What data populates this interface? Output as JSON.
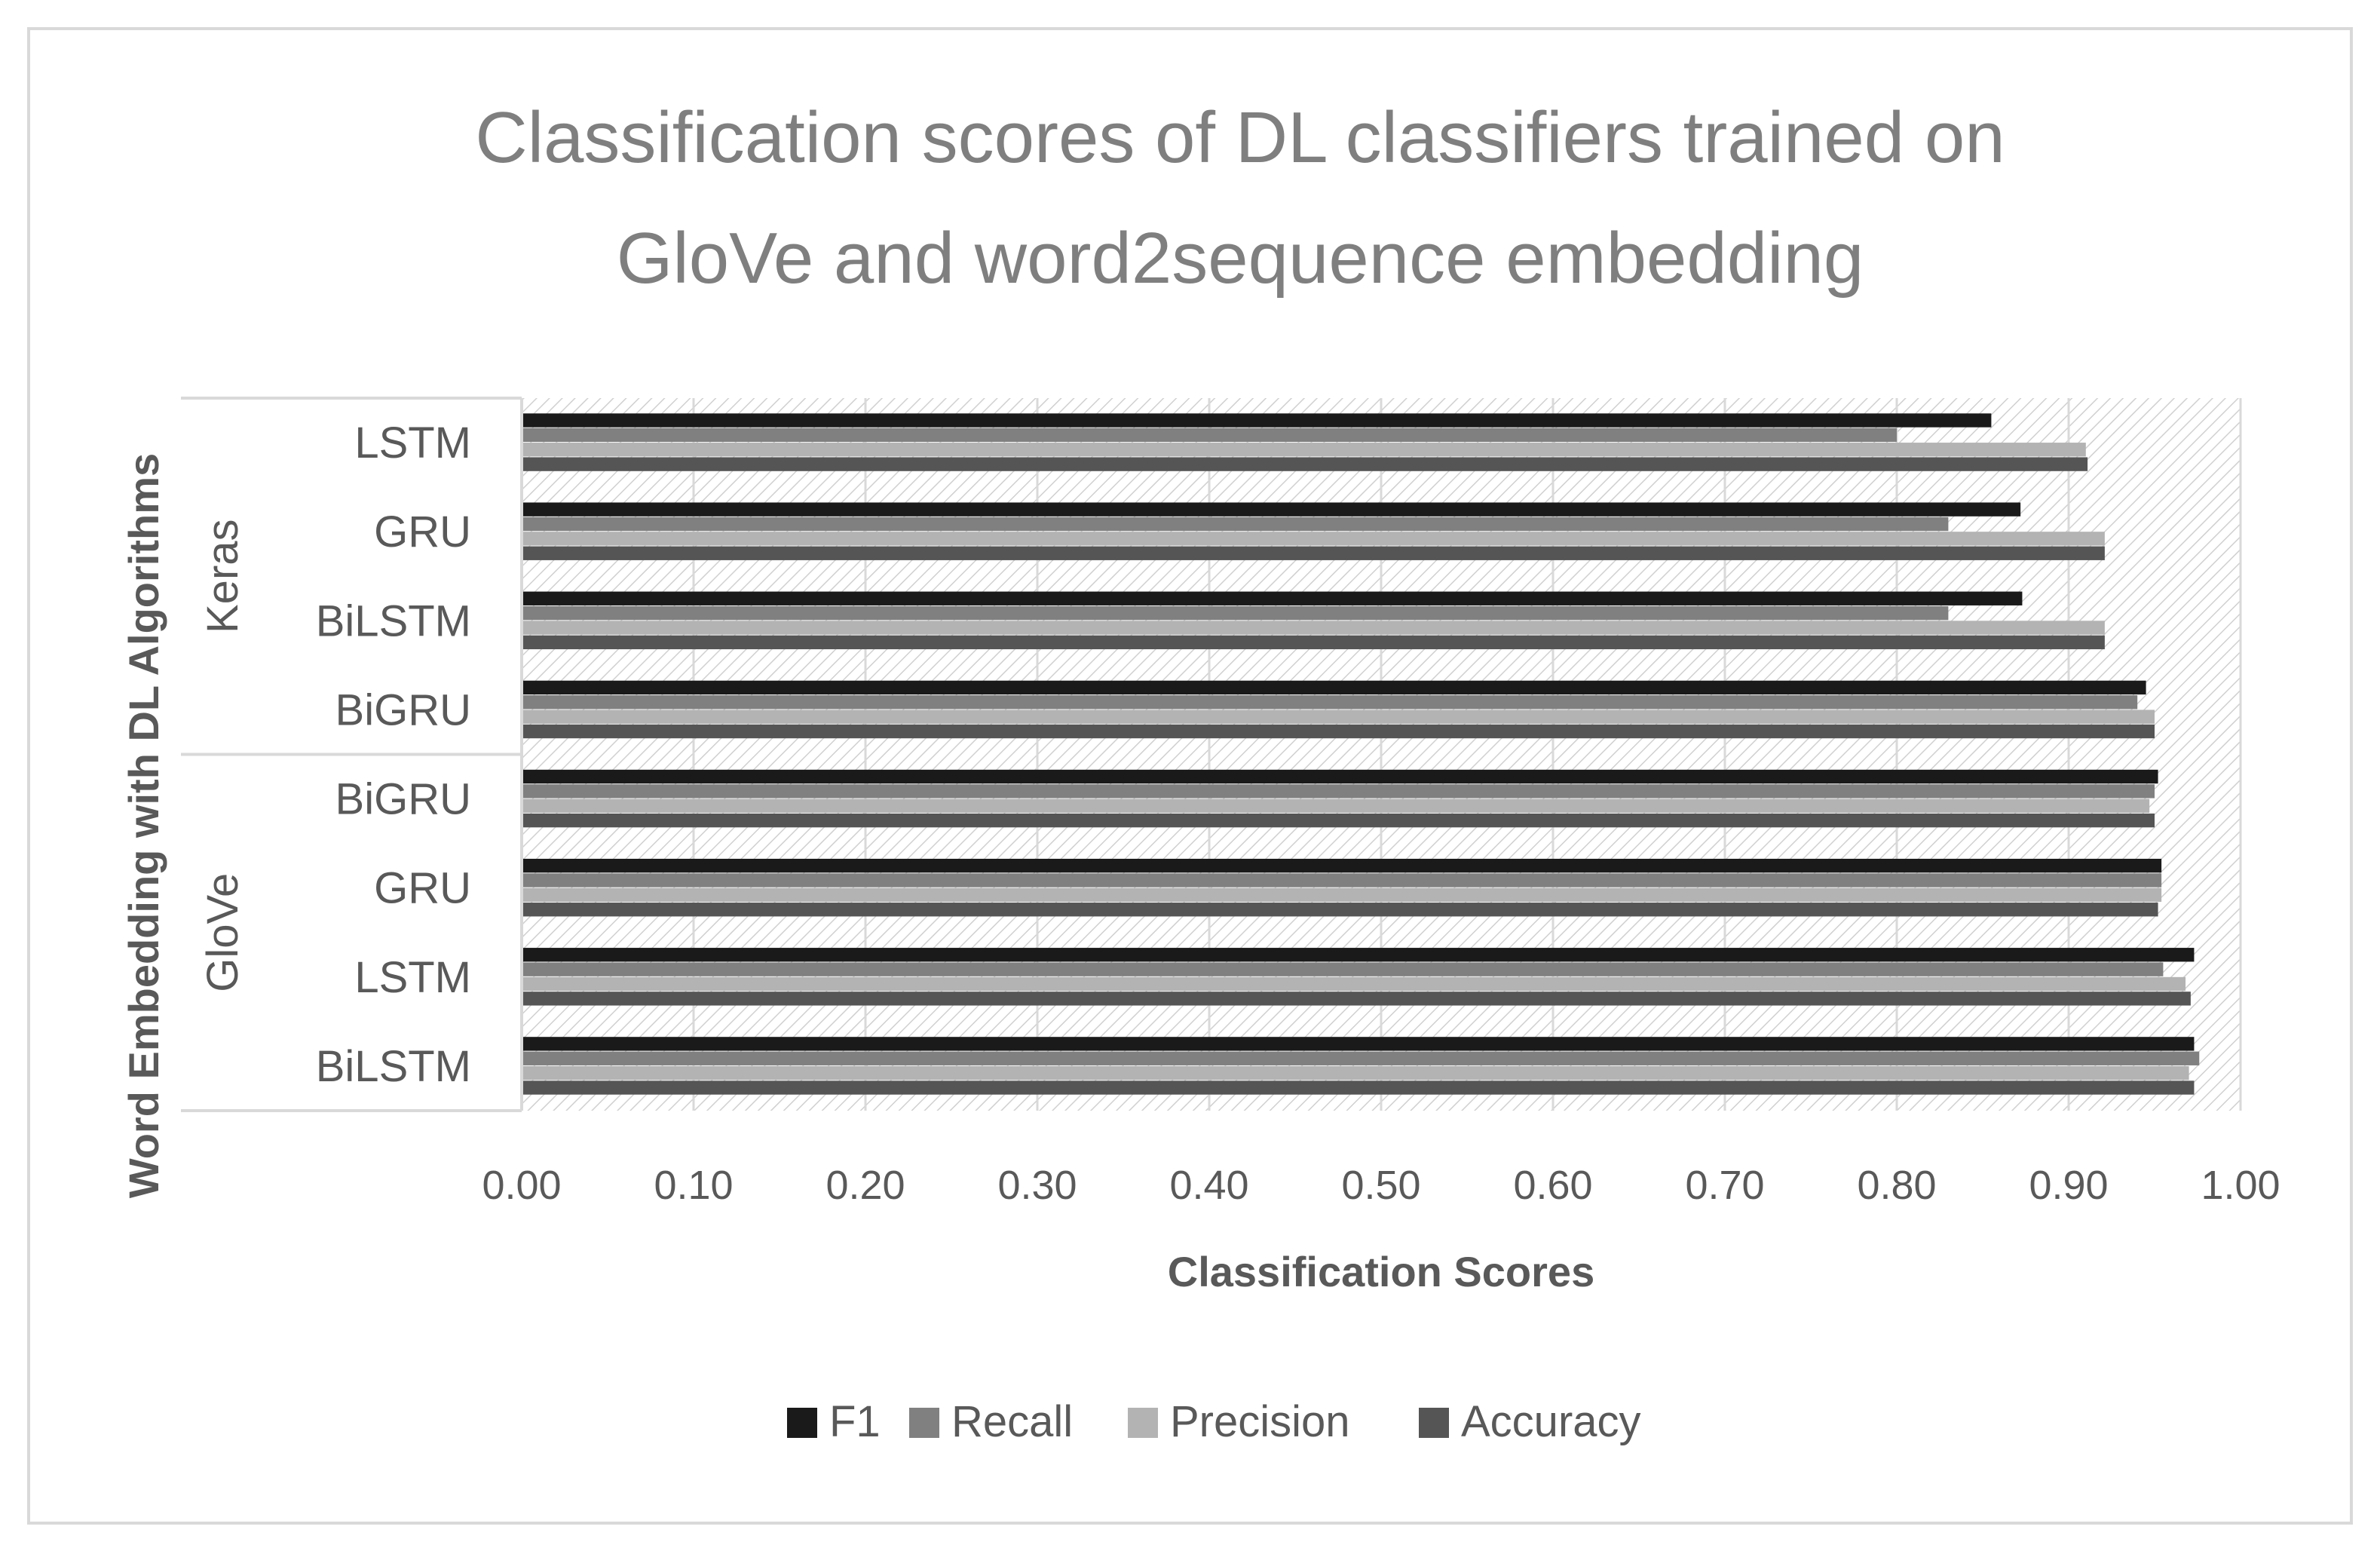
{
  "chart_data": {
    "type": "bar",
    "orientation": "horizontal",
    "title_lines": [
      "Classification scores of DL classifiers trained on",
      "GloVe and word2sequence embedding"
    ],
    "xlabel": "Classification Scores",
    "ylabel": "Word Embedding with DL Algorithms",
    "xlim": [
      0,
      1
    ],
    "x_ticks": [
      "0.00",
      "0.10",
      "0.20",
      "0.30",
      "0.40",
      "0.50",
      "0.60",
      "0.70",
      "0.80",
      "0.90",
      "1.00"
    ],
    "groups": [
      {
        "name": "Keras",
        "categories": [
          "LSTM",
          "GRU",
          "BiLSTM",
          "BiGRU"
        ]
      },
      {
        "name": "GloVe",
        "categories": [
          "BiGRU",
          "GRU",
          "LSTM",
          "BiLSTM"
        ]
      }
    ],
    "series": [
      {
        "name": "F1",
        "color": "#1a1a1a",
        "values": [
          0.855,
          0.872,
          0.873,
          0.945,
          0.952,
          0.954,
          0.973,
          0.973
        ]
      },
      {
        "name": "Recall",
        "color": "#808080",
        "values": [
          0.8,
          0.83,
          0.83,
          0.94,
          0.95,
          0.954,
          0.955,
          0.976
        ]
      },
      {
        "name": "Precision",
        "color": "#b3b3b3",
        "values": [
          0.91,
          0.921,
          0.921,
          0.95,
          0.947,
          0.954,
          0.968,
          0.97
        ]
      },
      {
        "name": "Accuracy",
        "color": "#555555",
        "values": [
          0.911,
          0.921,
          0.921,
          0.95,
          0.95,
          0.952,
          0.971,
          0.973
        ]
      }
    ],
    "legend_position": "bottom",
    "grid": true
  }
}
